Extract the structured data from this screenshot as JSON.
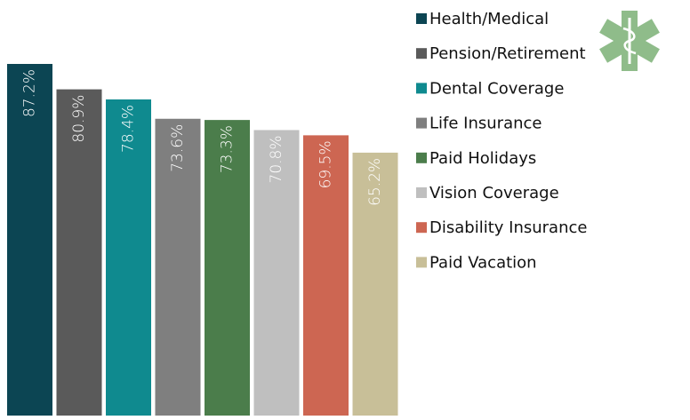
{
  "chart_data": {
    "type": "bar",
    "categories": [
      "Health/Medical",
      "Pension/Retirement",
      "Dental Coverage",
      "Life Insurance",
      "Paid Holidays",
      "Vision Coverage",
      "Disability Insurance",
      "Paid Vacation"
    ],
    "values": [
      87.2,
      80.9,
      78.4,
      73.6,
      73.3,
      70.8,
      69.5,
      65.2
    ],
    "value_labels": [
      "87.2%",
      "80.9%",
      "78.4%",
      "73.6%",
      "73.3%",
      "70.8%",
      "69.5%",
      "65.2%"
    ],
    "colors": [
      "#0c4553",
      "#5a5a5a",
      "#0f8a8f",
      "#7f7f7f",
      "#4b7d4b",
      "#bfbfbf",
      "#cd6652",
      "#c8bf98"
    ],
    "legend": "right"
  }
}
